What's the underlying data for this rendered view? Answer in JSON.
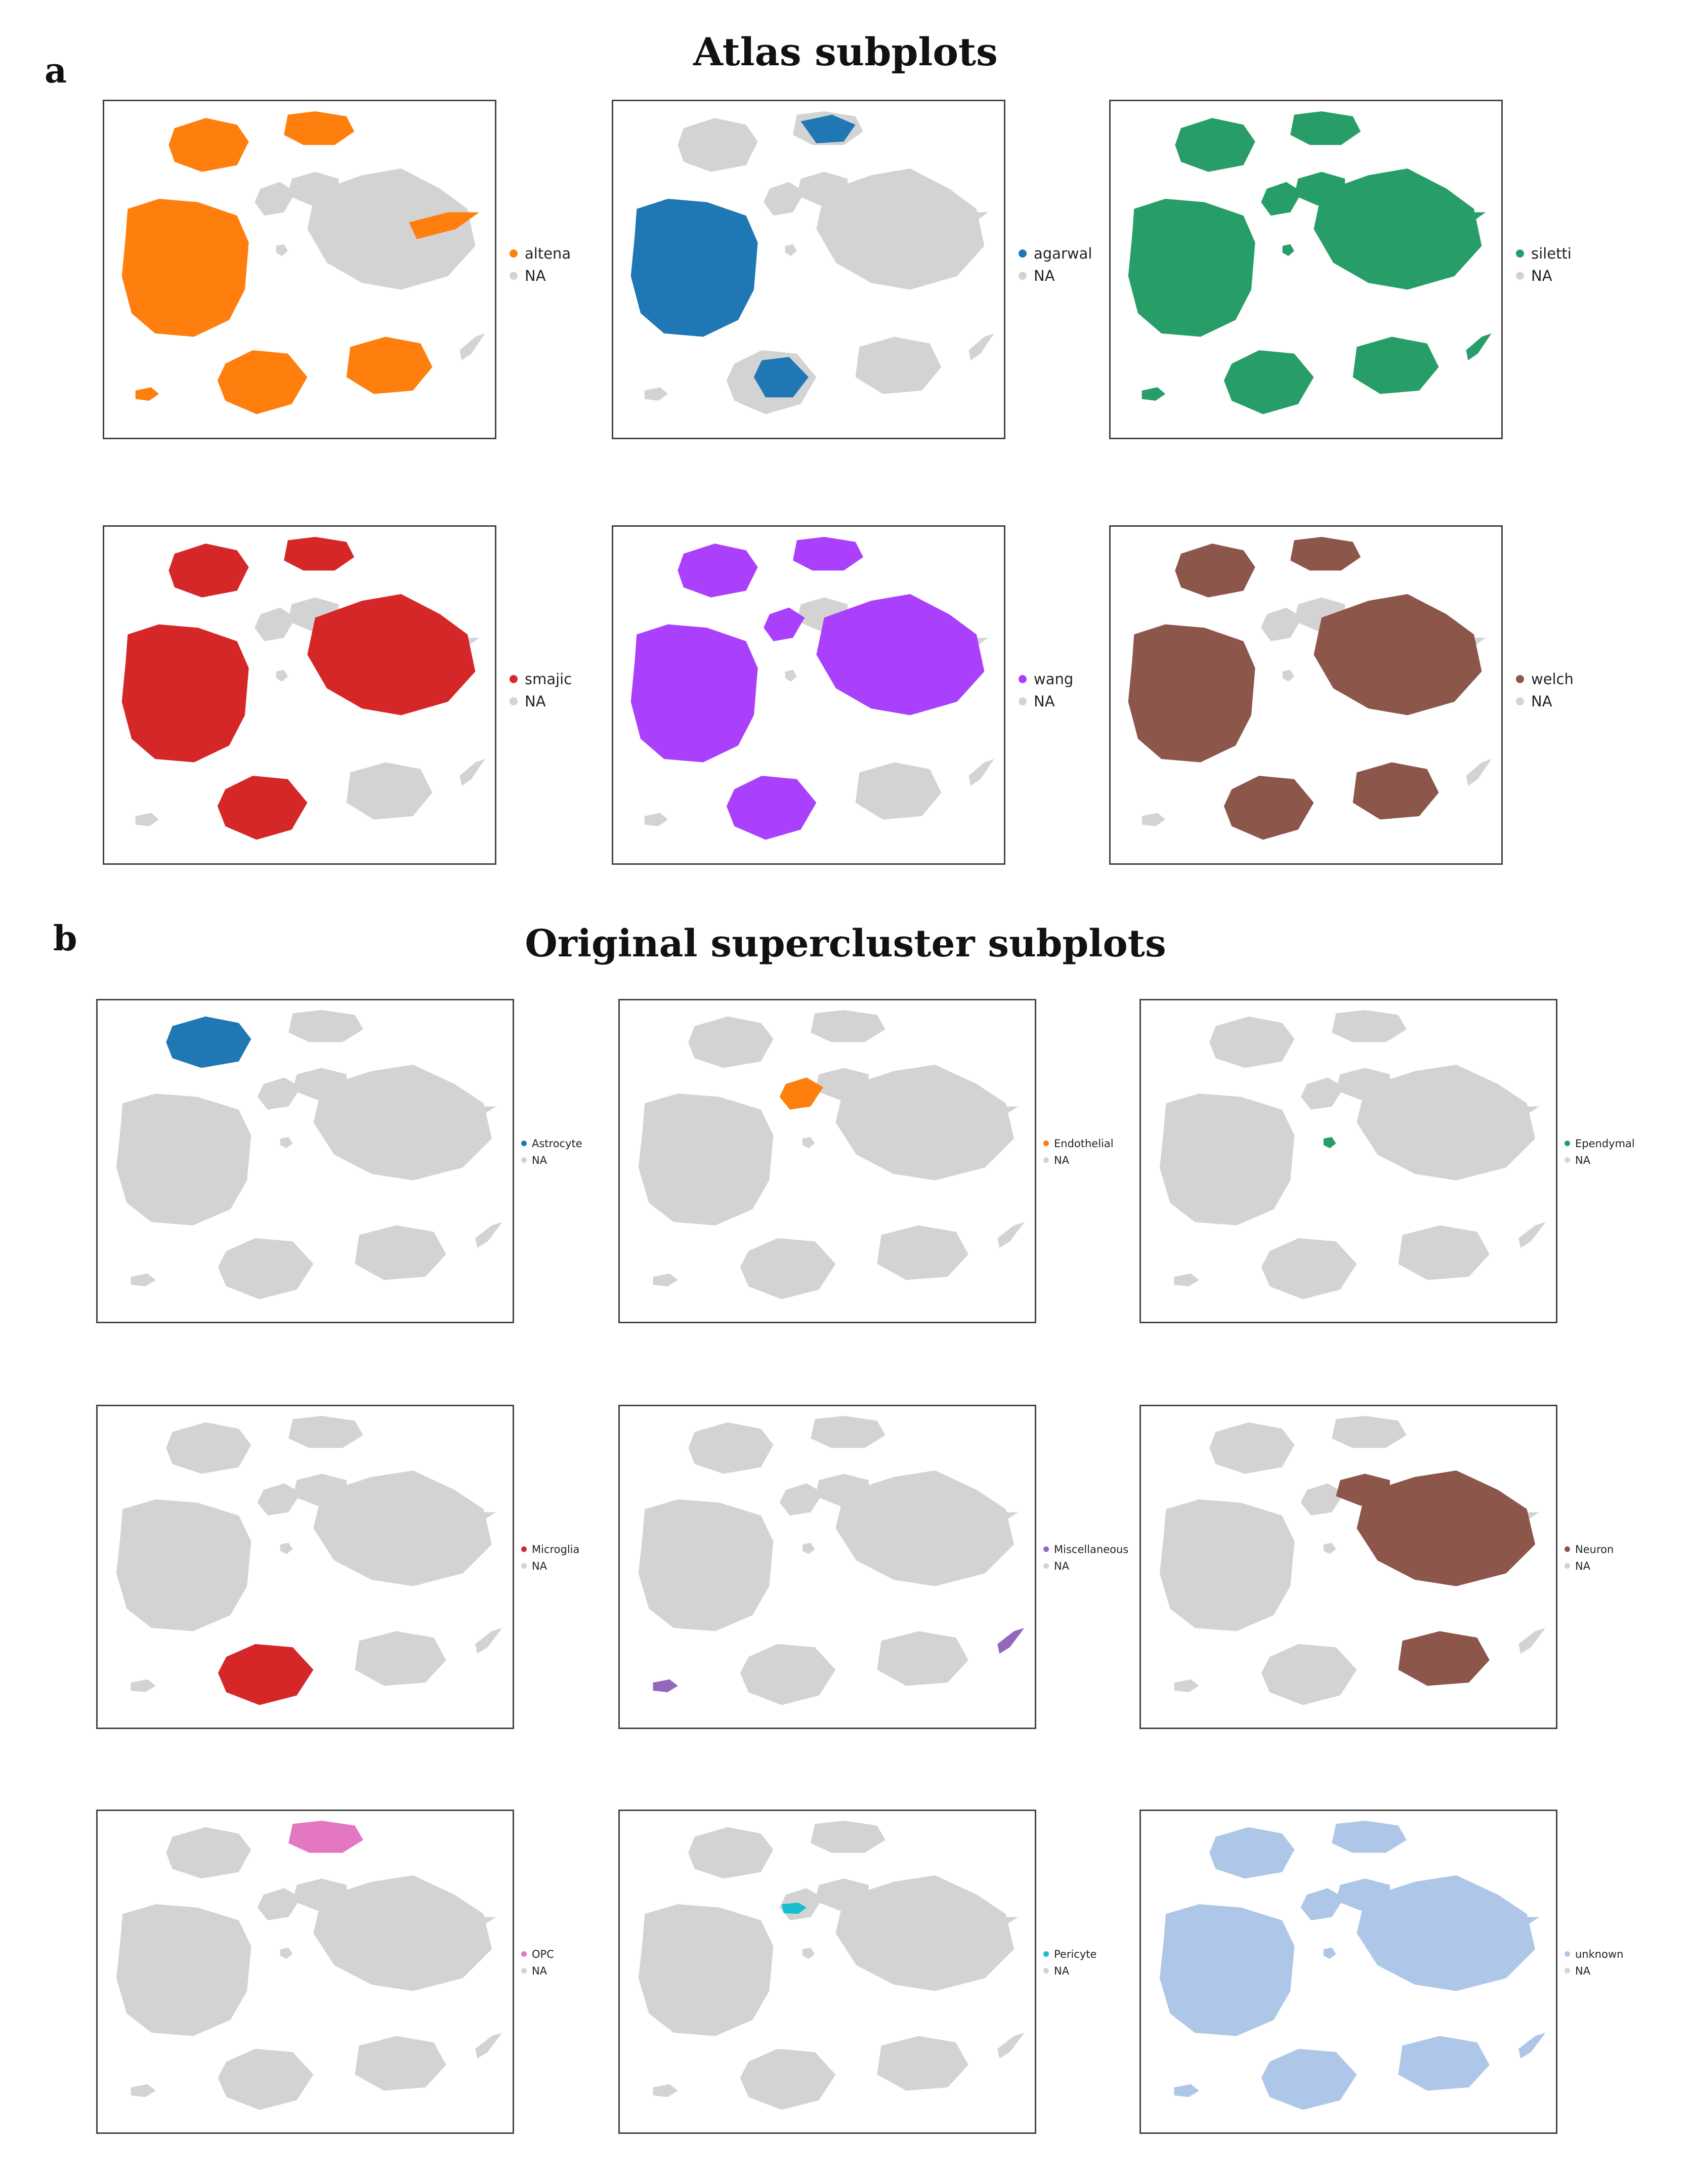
{
  "panel_a": {
    "letter": "a",
    "title": "Atlas subplots"
  },
  "panel_b": {
    "letter": "b",
    "title": "Original supercluster subplots"
  },
  "chart_data": [
    {
      "type": "scatter",
      "panel": "a",
      "highlight": "altena",
      "highlight_color": "#ff7f0e",
      "legend": [
        "altena",
        "NA"
      ],
      "highlight_clusters": [
        "big_left",
        "top_left",
        "top_right",
        "bottom_left",
        "bottom_right",
        "tiny_left",
        "neuron_arm"
      ]
    },
    {
      "type": "scatter",
      "panel": "a",
      "highlight": "agarwal",
      "highlight_color": "#1f77b4",
      "legend": [
        "agarwal",
        "NA"
      ],
      "highlight_clusters": [
        "big_left",
        "top_right_speckle",
        "bottom_left_partial"
      ]
    },
    {
      "type": "scatter",
      "panel": "a",
      "highlight": "siletti",
      "highlight_color": "#279e68",
      "legend": [
        "siletti",
        "NA"
      ],
      "highlight_clusters": [
        "all"
      ]
    },
    {
      "type": "scatter",
      "panel": "a",
      "highlight": "smajic",
      "highlight_color": "#d62728",
      "legend": [
        "smajic",
        "NA"
      ],
      "highlight_clusters": [
        "big_left",
        "top_left",
        "top_right",
        "bottom_left",
        "neuron_core"
      ]
    },
    {
      "type": "scatter",
      "panel": "a",
      "highlight": "wang",
      "highlight_color": "#aa40fc",
      "legend": [
        "wang",
        "NA"
      ],
      "highlight_clusters": [
        "big_left",
        "top_left",
        "top_right",
        "bottom_left",
        "middle_small",
        "neuron_core"
      ]
    },
    {
      "type": "scatter",
      "panel": "a",
      "highlight": "welch",
      "highlight_color": "#8c564b",
      "legend": [
        "welch",
        "NA"
      ],
      "highlight_clusters": [
        "big_left",
        "top_left",
        "top_right",
        "bottom_left",
        "bottom_right",
        "neuron_core"
      ]
    },
    {
      "type": "scatter",
      "panel": "b",
      "highlight": "Astrocyte",
      "highlight_color": "#1f77b4",
      "legend": [
        "Astrocyte",
        "NA"
      ],
      "highlight_clusters": [
        "top_left"
      ]
    },
    {
      "type": "scatter",
      "panel": "b",
      "highlight": "Endothelial",
      "highlight_color": "#ff7f0e",
      "legend": [
        "Endothelial",
        "NA"
      ],
      "highlight_clusters": [
        "middle_small"
      ]
    },
    {
      "type": "scatter",
      "panel": "b",
      "highlight": "Ependymal",
      "highlight_color": "#279e68",
      "legend": [
        "Ependymal",
        "NA"
      ],
      "highlight_clusters": [
        "tiny_mid"
      ]
    },
    {
      "type": "scatter",
      "panel": "b",
      "highlight": "Microglia",
      "highlight_color": "#d62728",
      "legend": [
        "Microglia",
        "NA"
      ],
      "highlight_clusters": [
        "bottom_left"
      ]
    },
    {
      "type": "scatter",
      "panel": "b",
      "highlight": "Miscellaneous",
      "highlight_color": "#9467bd",
      "legend": [
        "Miscellaneous",
        "NA"
      ],
      "highlight_clusters": [
        "tiny_left",
        "spike_right"
      ]
    },
    {
      "type": "scatter",
      "panel": "b",
      "highlight": "Neuron",
      "highlight_color": "#8c564b",
      "legend": [
        "Neuron",
        "NA"
      ],
      "highlight_clusters": [
        "neuron_core",
        "top_right_small",
        "bottom_right"
      ]
    },
    {
      "type": "scatter",
      "panel": "b",
      "highlight": "OPC",
      "highlight_color": "#e377c2",
      "legend": [
        "OPC",
        "NA"
      ],
      "highlight_clusters": [
        "top_right"
      ]
    },
    {
      "type": "scatter",
      "panel": "b",
      "highlight": "Pericyte",
      "highlight_color": "#17becf",
      "legend": [
        "Pericyte",
        "NA"
      ],
      "highlight_clusters": [
        "pericyte_small"
      ]
    },
    {
      "type": "scatter",
      "panel": "b",
      "highlight": "unknown",
      "highlight_color": "#aec7e8",
      "legend": [
        "unknown",
        "NA"
      ],
      "highlight_clusters": [
        "all"
      ]
    }
  ],
  "na_color": "#d3d3d3"
}
